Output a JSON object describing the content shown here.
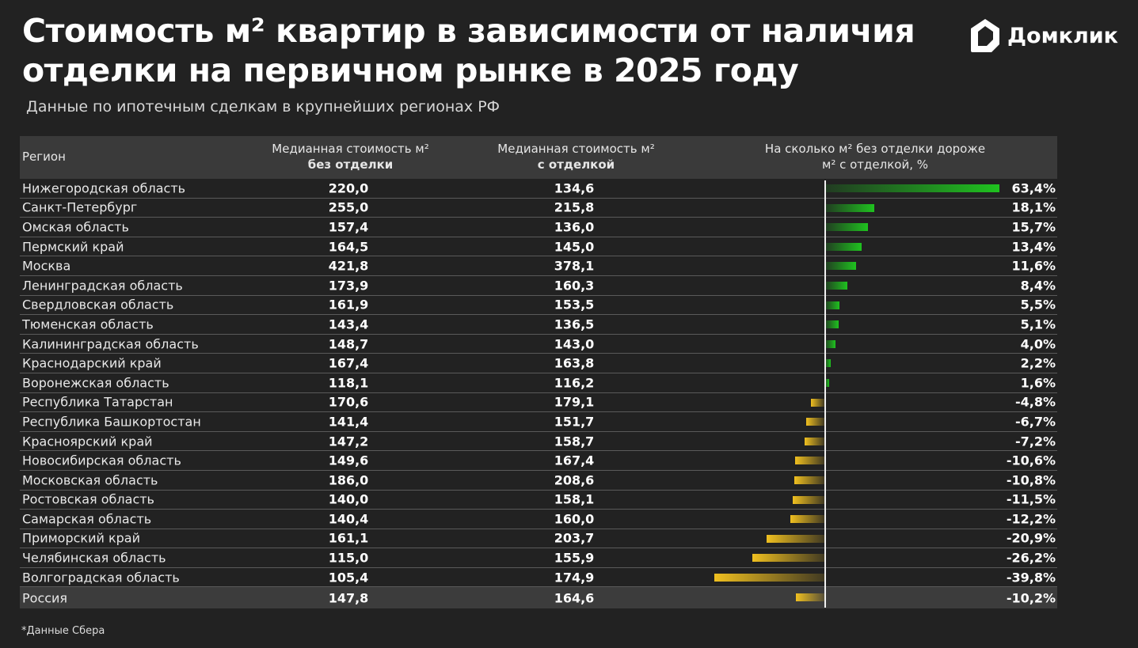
{
  "title": "Стоимость м² квартир в зависимости от наличия отделки на первичном рынке в 2025 году",
  "subtitle": "Данные по ипотечным сделкам в крупнейших регионах РФ",
  "logo": "Домклик",
  "footnote": "*Данные Сбера",
  "colors": {
    "background": "#222222",
    "header": "#3a3a3a",
    "positive": "#1fc21f",
    "negative": "#f0c020",
    "axis": "#f0f0f0"
  },
  "chart_data": {
    "type": "table",
    "columns": [
      "Регион",
      "Медианная стоимость м² без отделки",
      "Медианная стоимость м² с отделкой",
      "На сколько м² без отделки дороже м² с отделкой, %"
    ],
    "header": {
      "region": "Регион",
      "col2_line1": "Медианная стоимость м²",
      "col2_line2": "без отделки",
      "col3_line1": "Медианная стоимость м²",
      "col3_line2": "с отделкой",
      "col4_line1": "На сколько м² без отделки дороже",
      "col4_line2": "м² с отделкой, %"
    },
    "rows": [
      {
        "region": "Нижегородская область",
        "without": "220,0",
        "with": "134,6",
        "diff": 63.4,
        "diff_label": "63,4%"
      },
      {
        "region": "Санкт-Петербург",
        "without": "255,0",
        "with": "215,8",
        "diff": 18.1,
        "diff_label": "18,1%"
      },
      {
        "region": "Омская область",
        "without": "157,4",
        "with": "136,0",
        "diff": 15.7,
        "diff_label": "15,7%"
      },
      {
        "region": "Пермский край",
        "without": "164,5",
        "with": "145,0",
        "diff": 13.4,
        "diff_label": "13,4%"
      },
      {
        "region": "Москва",
        "without": "421,8",
        "with": "378,1",
        "diff": 11.6,
        "diff_label": "11,6%"
      },
      {
        "region": "Ленинградская область",
        "without": "173,9",
        "with": "160,3",
        "diff": 8.4,
        "diff_label": "8,4%"
      },
      {
        "region": "Свердловская область",
        "without": "161,9",
        "with": "153,5",
        "diff": 5.5,
        "diff_label": "5,5%"
      },
      {
        "region": "Тюменская область",
        "without": "143,4",
        "with": "136,5",
        "diff": 5.1,
        "diff_label": "5,1%"
      },
      {
        "region": "Калининградская область",
        "without": "148,7",
        "with": "143,0",
        "diff": 4.0,
        "diff_label": "4,0%"
      },
      {
        "region": "Краснодарский край",
        "without": "167,4",
        "with": "163,8",
        "diff": 2.2,
        "diff_label": "2,2%"
      },
      {
        "region": "Воронежская область",
        "without": "118,1",
        "with": "116,2",
        "diff": 1.6,
        "diff_label": "1,6%"
      },
      {
        "region": "Республика Татарстан",
        "without": "170,6",
        "with": "179,1",
        "diff": -4.8,
        "diff_label": "-4,8%"
      },
      {
        "region": "Республика Башкортостан",
        "without": "141,4",
        "with": "151,7",
        "diff": -6.7,
        "diff_label": "-6,7%"
      },
      {
        "region": "Красноярский край",
        "without": "147,2",
        "with": "158,7",
        "diff": -7.2,
        "diff_label": "-7,2%"
      },
      {
        "region": "Новосибирская область",
        "without": "149,6",
        "with": "167,4",
        "diff": -10.6,
        "diff_label": "-10,6%"
      },
      {
        "region": "Московская область",
        "without": "186,0",
        "with": "208,6",
        "diff": -10.8,
        "diff_label": "-10,8%"
      },
      {
        "region": "Ростовская область",
        "without": "140,0",
        "with": "158,1",
        "diff": -11.5,
        "diff_label": "-11,5%"
      },
      {
        "region": "Самарская область",
        "without": "140,4",
        "with": "160,0",
        "diff": -12.2,
        "diff_label": "-12,2%"
      },
      {
        "region": "Приморский край",
        "without": "161,1",
        "with": "203,7",
        "diff": -20.9,
        "diff_label": "-20,9%"
      },
      {
        "region": "Челябинская область",
        "without": "115,0",
        "with": "155,9",
        "diff": -26.2,
        "diff_label": "-26,2%"
      },
      {
        "region": "Волгоградская область",
        "without": "105,4",
        "with": "174,9",
        "diff": -39.8,
        "diff_label": "-39,8%"
      },
      {
        "region": "Россия",
        "without": "147,8",
        "with": "164,6",
        "diff": -10.2,
        "diff_label": "-10,2%",
        "total": true
      }
    ]
  }
}
